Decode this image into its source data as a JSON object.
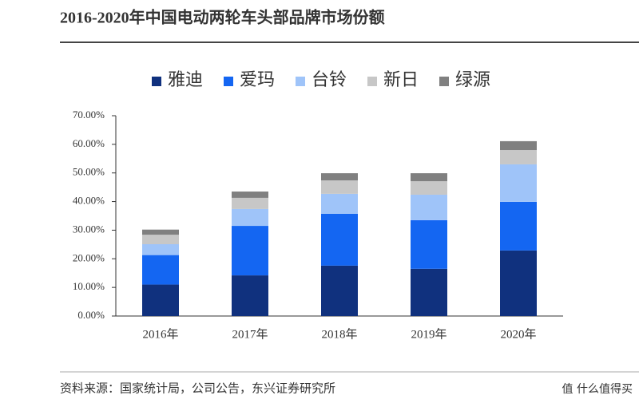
{
  "chart_data": {
    "type": "stacked_bar",
    "title": "2016-2020年中国电动两轮车头部品牌市场份额",
    "categories": [
      "2016年",
      "2017年",
      "2018年",
      "2019年",
      "2020年"
    ],
    "series": [
      {
        "name": "雅迪",
        "color": "#10317e",
        "values": [
          11,
          14.2,
          17.6,
          16.5,
          22.9
        ]
      },
      {
        "name": "爱玛",
        "color": "#1466f2",
        "values": [
          10.3,
          17.3,
          18.1,
          17,
          17
        ]
      },
      {
        "name": "台铃",
        "color": "#9fc4f9",
        "values": [
          3.8,
          5.9,
          7,
          8.9,
          13.1
        ]
      },
      {
        "name": "新日",
        "color": "#c7c7c7",
        "values": [
          3.3,
          3.9,
          4.7,
          4.7,
          5
        ]
      },
      {
        "name": "绿源",
        "color": "#808080",
        "values": [
          1.8,
          2.2,
          2.5,
          2.8,
          3.1
        ]
      }
    ],
    "ylim": [
      0,
      70
    ],
    "yticks": [
      {
        "value": 0,
        "label": "0.00%"
      },
      {
        "value": 10,
        "label": "10.00%"
      },
      {
        "value": 20,
        "label": "20.00%"
      },
      {
        "value": 30,
        "label": "30.00%"
      },
      {
        "value": 40,
        "label": "40.00%"
      },
      {
        "value": 50,
        "label": "50.00%"
      },
      {
        "value": 60,
        "label": "60.00%"
      },
      {
        "value": 70,
        "label": "70.00%"
      }
    ],
    "grid": false,
    "legend": "top"
  },
  "source": "资料来源：国家统计局，公司公告，东兴证券研究所",
  "watermark": "值 什么值得买"
}
